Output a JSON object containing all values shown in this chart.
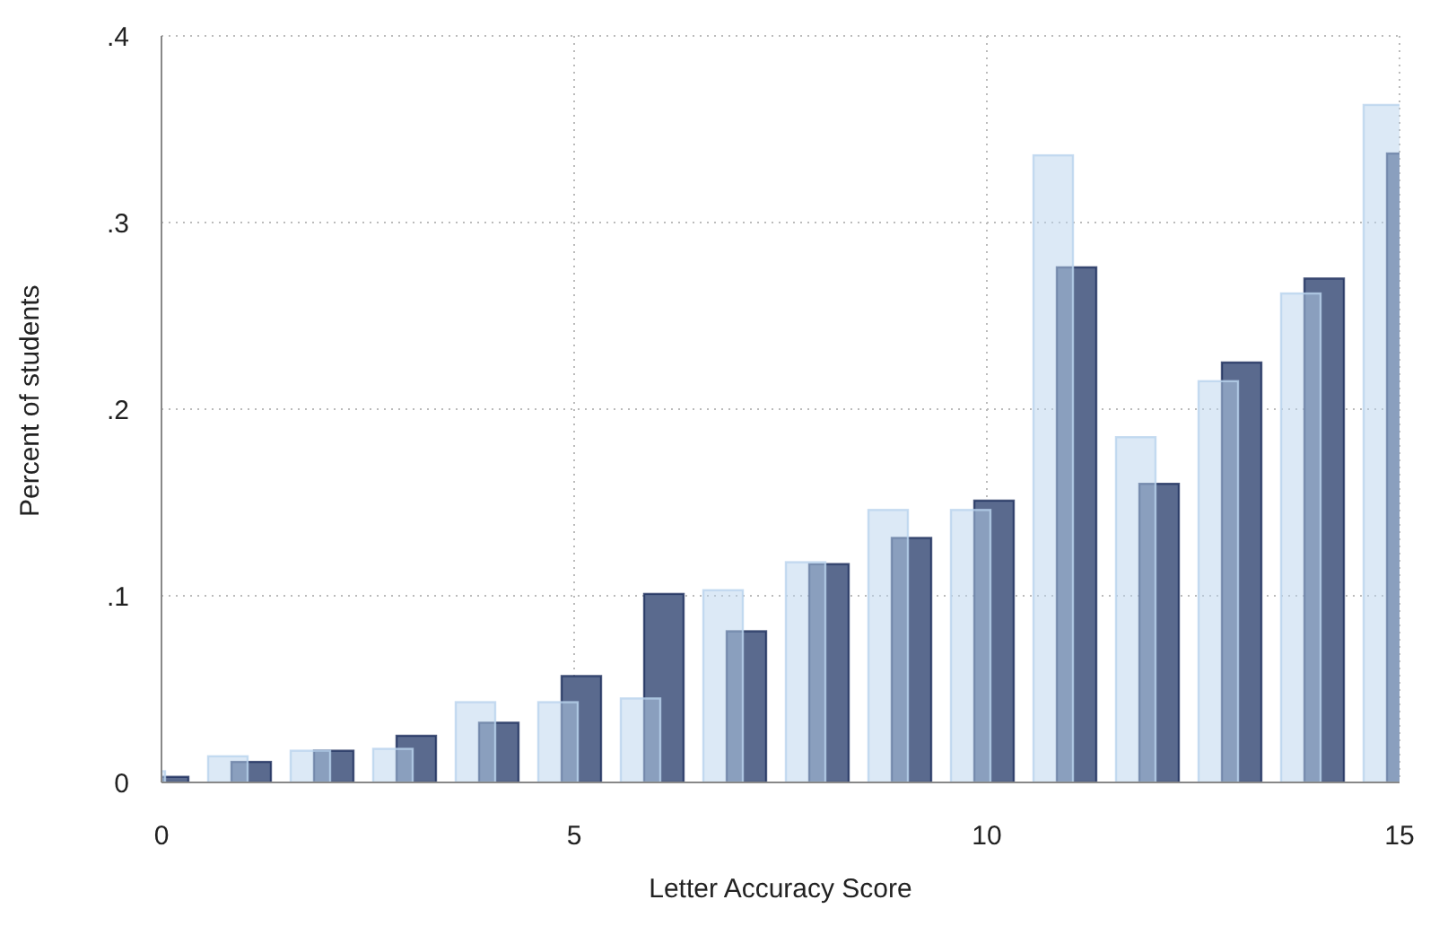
{
  "chart_data": {
    "type": "bar",
    "xlabel": "Letter Accuracy Score",
    "ylabel": "Percent of students",
    "x": [
      0,
      1,
      2,
      3,
      4,
      5,
      6,
      7,
      8,
      9,
      10,
      11,
      12,
      13,
      14,
      15
    ],
    "series": [
      {
        "color": "#5a6a8e",
        "values": [
          0.003,
          0.011,
          0.017,
          0.025,
          0.032,
          0.057,
          0.101,
          0.081,
          0.117,
          0.131,
          0.151,
          0.276,
          0.16,
          0.225,
          0.27,
          0.337
        ]
      },
      {
        "color": "#b9d3ee",
        "values": [
          0.006,
          0.014,
          0.017,
          0.018,
          0.043,
          0.043,
          0.045,
          0.103,
          0.118,
          0.146,
          0.146,
          0.336,
          0.185,
          0.215,
          0.262,
          0.363
        ]
      }
    ],
    "xlim": [
      0,
      15
    ],
    "xticks": [
      0,
      5,
      10,
      15
    ],
    "ylim": [
      0,
      0.4
    ],
    "yticks": [
      {
        "value": 0,
        "label": "0"
      },
      {
        "value": 0.1,
        "label": ".1"
      },
      {
        "value": 0.2,
        "label": ".2"
      },
      {
        "value": 0.3,
        "label": ".3"
      },
      {
        "value": 0.4,
        "label": ".4"
      }
    ],
    "grid": true,
    "line_style": "dotted"
  }
}
